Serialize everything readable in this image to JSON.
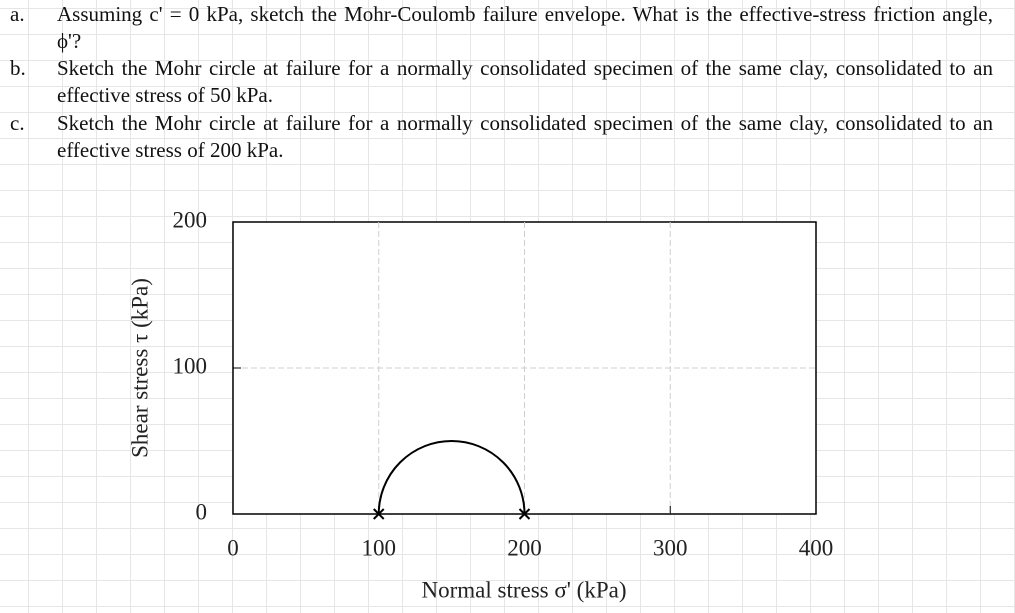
{
  "questions": [
    {
      "label": "a.",
      "text": "Assuming c' = 0 kPa, sketch the Mohr-Coulomb failure envelope. What is the effective-stress friction angle, ϕ'?"
    },
    {
      "label": "b.",
      "text": "Sketch the Mohr circle at failure for a normally consolidated specimen of the same clay, consolidated to an effective stress of 50 kPa."
    },
    {
      "label": "c.",
      "text": "Sketch the Mohr circle at failure for a normally consolidated specimen of the same clay, consolidated to an effective stress of 200 kPa."
    }
  ],
  "chart_data": {
    "type": "mohr_circle",
    "xlabel": "Normal stress σ' (kPa)",
    "ylabel": "Shear stress τ (kPa)",
    "circles": [
      {
        "sigma3": 100,
        "sigma1": 200
      }
    ],
    "xlim": [
      0,
      400
    ],
    "xticks": [
      0,
      100,
      200,
      300,
      400
    ],
    "ylim": [
      0,
      200
    ],
    "yticks": [
      0,
      100,
      200
    ],
    "grid": true,
    "color": "#000000"
  }
}
